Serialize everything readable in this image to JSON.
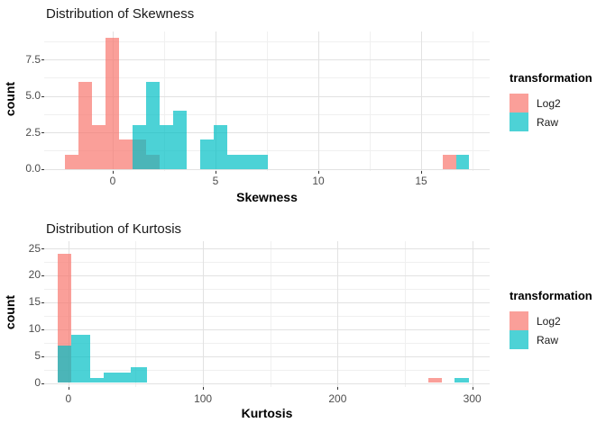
{
  "colors": {
    "log2": "rgba(248,118,109,0.7)",
    "raw": "rgba(0,191,196,0.7)",
    "log2_solid": "#FA9F99",
    "raw_solid": "#4DD2D6",
    "overlap_observed": "#4BB5B7",
    "grid_major": "#e2e2e2",
    "grid_minor": "#f0f0f0",
    "tick_label": "#4d4d4d"
  },
  "legend": {
    "title": "transformation",
    "items": [
      {
        "label": "Log2",
        "color": "log2_solid"
      },
      {
        "label": "Raw",
        "color": "raw_solid"
      }
    ]
  },
  "chart_data": [
    {
      "type": "histogram",
      "title": "Distribution of Skewness",
      "xlabel": "Skewness",
      "ylabel": "count",
      "legend_title": "transformation",
      "legend_position": "right",
      "grid": true,
      "xlim": [
        -3.4,
        18.3
      ],
      "ylim": [
        0,
        9.4
      ],
      "x_ticks": [
        {
          "v": 0,
          "label": "0"
        },
        {
          "v": 5,
          "label": "5"
        },
        {
          "v": 10,
          "label": "10"
        },
        {
          "v": 15,
          "label": "15"
        }
      ],
      "x_minor": [
        2.5,
        7.5,
        12.5,
        17.5
      ],
      "y_ticks": [
        {
          "v": 0,
          "label": "0.0"
        },
        {
          "v": 2.5,
          "label": "2.5"
        },
        {
          "v": 5,
          "label": "5.0"
        },
        {
          "v": 7.5,
          "label": "7.5"
        }
      ],
      "y_minor": [
        1.25,
        3.75,
        6.25,
        8.75
      ],
      "series": [
        {
          "name": "Log2",
          "color": "log2",
          "bins": [
            {
              "x0": -2.34,
              "x1": -1.68,
              "count": 1
            },
            {
              "x0": -1.68,
              "x1": -1.02,
              "count": 6
            },
            {
              "x0": -1.02,
              "x1": -0.36,
              "count": 3
            },
            {
              "x0": -0.36,
              "x1": 0.29,
              "count": 9
            },
            {
              "x0": 0.29,
              "x1": 0.95,
              "count": 2
            },
            {
              "x0": 0.95,
              "x1": 1.61,
              "count": 2
            },
            {
              "x0": 1.61,
              "x1": 2.27,
              "count": 1
            },
            {
              "x0": 16.05,
              "x1": 16.69,
              "count": 1
            }
          ]
        },
        {
          "name": "Raw",
          "color": "raw",
          "bins": [
            {
              "x0": 0.95,
              "x1": 1.61,
              "count": 3
            },
            {
              "x0": 1.61,
              "x1": 2.27,
              "count": 6
            },
            {
              "x0": 2.27,
              "x1": 2.93,
              "count": 3
            },
            {
              "x0": 2.93,
              "x1": 3.58,
              "count": 4
            },
            {
              "x0": 4.24,
              "x1": 4.9,
              "count": 2
            },
            {
              "x0": 4.9,
              "x1": 5.56,
              "count": 3
            },
            {
              "x0": 5.56,
              "x1": 7.53,
              "count": 1
            },
            {
              "x0": 16.69,
              "x1": 17.32,
              "count": 1
            }
          ]
        }
      ]
    },
    {
      "type": "histogram",
      "title": "Distribution of Kurtosis",
      "xlabel": "Kurtosis",
      "ylabel": "count",
      "legend_title": "transformation",
      "legend_position": "right",
      "grid": true,
      "xlim": [
        -18,
        313
      ],
      "ylim": [
        0,
        26.3
      ],
      "x_ticks": [
        {
          "v": 0,
          "label": "0"
        },
        {
          "v": 100,
          "label": "100"
        },
        {
          "v": 200,
          "label": "200"
        },
        {
          "v": 300,
          "label": "300"
        }
      ],
      "x_minor": [
        50,
        150,
        250
      ],
      "y_ticks": [
        {
          "v": 0,
          "label": "0"
        },
        {
          "v": 5,
          "label": "5"
        },
        {
          "v": 10,
          "label": "10"
        },
        {
          "v": 15,
          "label": "15"
        },
        {
          "v": 20,
          "label": "20"
        },
        {
          "v": 25,
          "label": "25"
        }
      ],
      "y_minor": [
        2.5,
        7.5,
        12.5,
        17.5,
        22.5
      ],
      "series": [
        {
          "name": "Log2",
          "color": "log2",
          "bins": [
            {
              "x0": -8.2,
              "x1": 2.1,
              "count": 24
            },
            {
              "x0": 267.4,
              "x1": 277.4,
              "count": 1
            }
          ]
        },
        {
          "name": "Raw",
          "color": "raw",
          "bins": [
            {
              "x0": -8.2,
              "x1": 2.1,
              "count": 7
            },
            {
              "x0": 2.1,
              "x1": 16.2,
              "count": 9
            },
            {
              "x0": 16.2,
              "x1": 26.3,
              "count": 1
            },
            {
              "x0": 26.3,
              "x1": 46.4,
              "count": 2
            },
            {
              "x0": 46.4,
              "x1": 58.2,
              "count": 3
            },
            {
              "x0": 287.0,
              "x1": 297.5,
              "count": 1
            }
          ]
        }
      ]
    }
  ]
}
